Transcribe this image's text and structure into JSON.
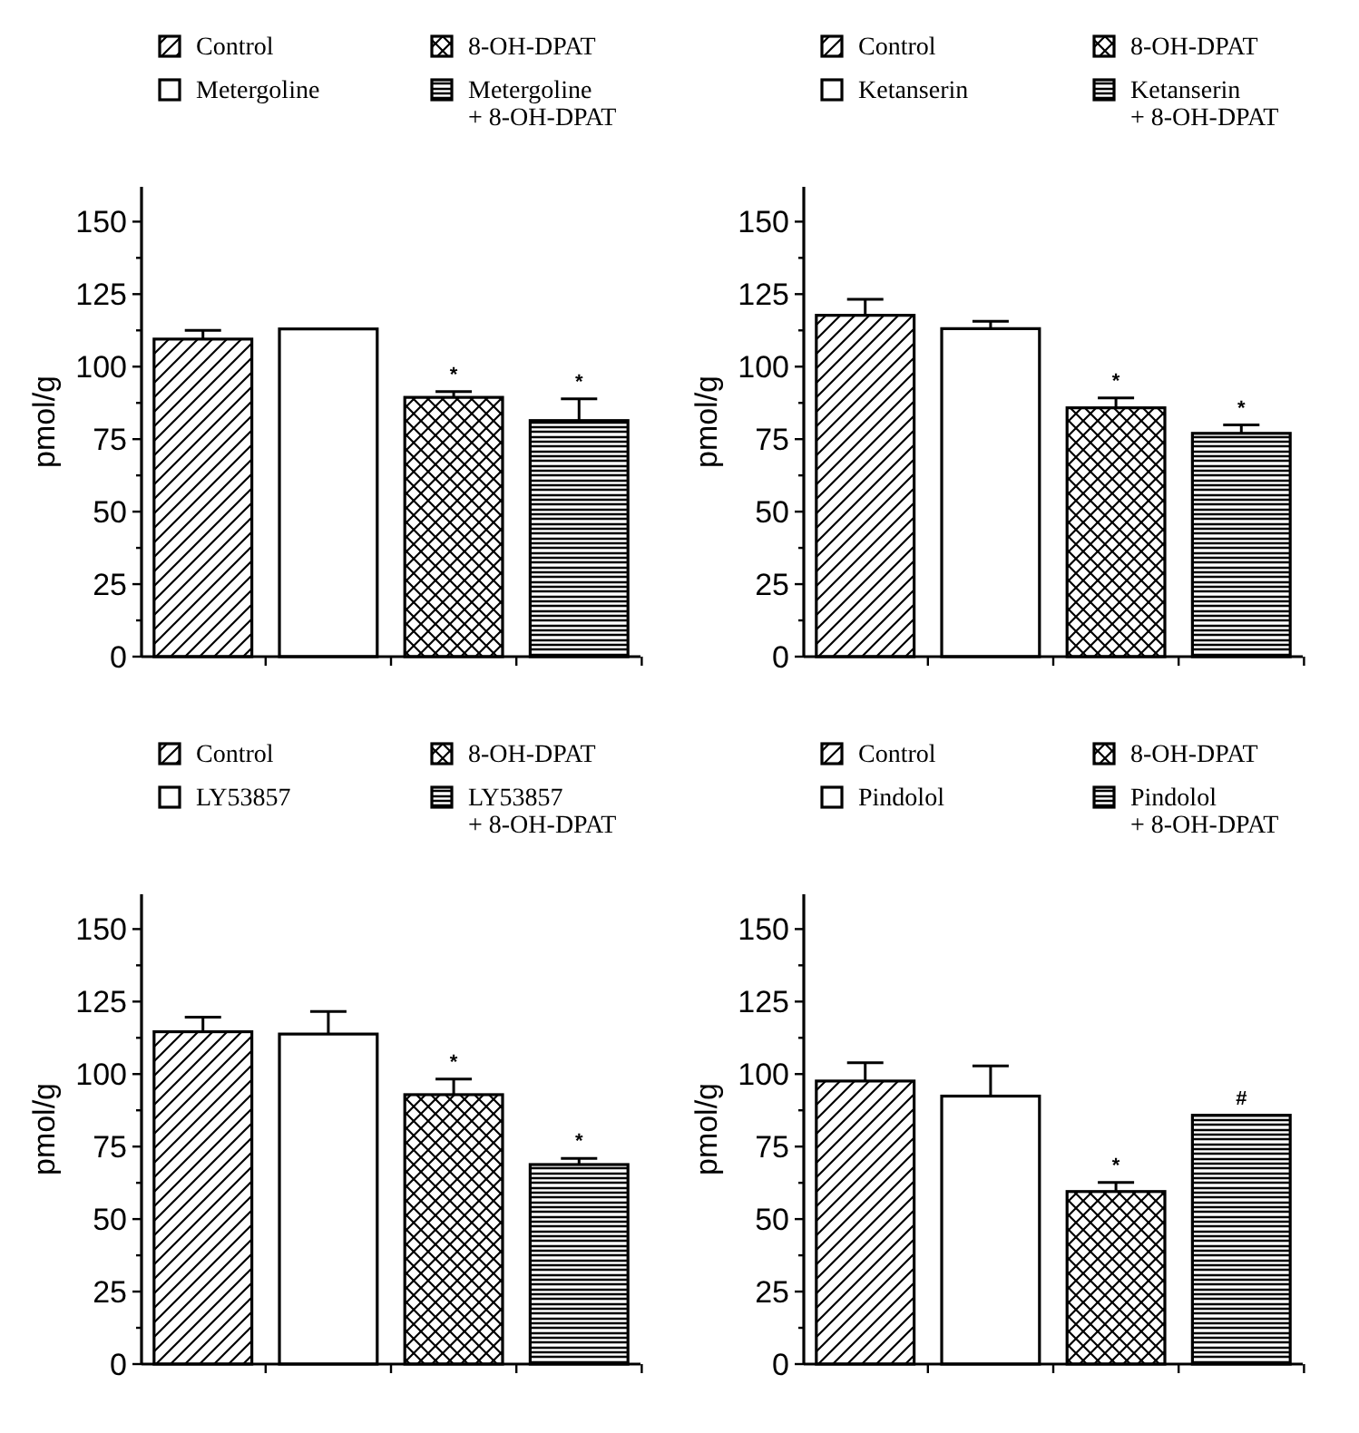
{
  "chart_data": [
    {
      "type": "bar",
      "ylabel": "pmol/g",
      "categories": [
        null,
        null,
        null,
        null
      ],
      "ylim": [
        0,
        162
      ],
      "yticks": [
        0,
        {
          "value": 12.5,
          "label": null
        },
        25,
        {
          "value": 37.5,
          "label": null
        },
        50,
        {
          "value": 62.5,
          "label": null
        },
        75,
        {
          "value": 87.5,
          "label": null
        },
        100,
        {
          "value": 112.5,
          "label": null
        },
        125,
        {
          "value": 137.5,
          "label": null
        },
        150
      ],
      "legend": "top",
      "series": [
        {
          "name": "Control",
          "color": "#000000",
          "values": [
            109.5,
            null,
            null,
            null
          ],
          "errors": [
            3,
            null,
            null,
            null
          ]
        },
        {
          "name": "Metergoline",
          "color": "#000000",
          "values": [
            null,
            113,
            null,
            null
          ]
        },
        {
          "name": "8-OH-DPAT",
          "color": "#000000",
          "values": [
            null,
            null,
            89.4,
            null
          ],
          "errors": [
            null,
            null,
            2,
            null
          ],
          "value_labels": [
            null,
            null,
            "*",
            null
          ]
        },
        {
          "name": "Metergoline\n+ 8-OH-DPAT",
          "color": "#000000",
          "values": [
            null,
            null,
            null,
            81.4
          ],
          "errors": [
            null,
            null,
            null,
            7.5
          ],
          "value_labels": [
            null,
            null,
            null,
            "*"
          ]
        }
      ]
    },
    {
      "type": "bar",
      "ylabel": "pmol/g",
      "categories": [
        null,
        null,
        null,
        null
      ],
      "ylim": [
        0,
        162
      ],
      "yticks": [
        0,
        {
          "value": 12.5,
          "label": null
        },
        25,
        {
          "value": 37.5,
          "label": null
        },
        50,
        {
          "value": 62.5,
          "label": null
        },
        75,
        {
          "value": 87.5,
          "label": null
        },
        100,
        {
          "value": 112.5,
          "label": null
        },
        125,
        {
          "value": 137.5,
          "label": null
        },
        150
      ],
      "legend": "top",
      "series": [
        {
          "name": "Control",
          "color": "#000000",
          "values": [
            117.7,
            null,
            null,
            null
          ],
          "errors": [
            5.5,
            null,
            null,
            null
          ]
        },
        {
          "name": "Ketanserin",
          "color": "#000000",
          "values": [
            null,
            113.1,
            null,
            null
          ],
          "errors": [
            null,
            2.5,
            null,
            null
          ]
        },
        {
          "name": "8-OH-DPAT",
          "color": "#000000",
          "values": [
            null,
            null,
            85.8,
            null
          ],
          "errors": [
            null,
            null,
            3.4,
            null
          ],
          "value_labels": [
            null,
            null,
            "*",
            null
          ]
        },
        {
          "name": "Ketanserin\n+ 8-OH-DPAT",
          "color": "#000000",
          "values": [
            null,
            null,
            null,
            77
          ],
          "errors": [
            null,
            null,
            null,
            2.9
          ],
          "value_labels": [
            null,
            null,
            null,
            "*"
          ]
        }
      ]
    },
    {
      "type": "bar",
      "ylabel": "pmol/g",
      "categories": [
        null,
        null,
        null,
        null
      ],
      "ylim": [
        0,
        162
      ],
      "yticks": [
        0,
        {
          "value": 12.5,
          "label": null
        },
        25,
        {
          "value": 37.5,
          "label": null
        },
        50,
        {
          "value": 62.5,
          "label": null
        },
        75,
        {
          "value": 87.5,
          "label": null
        },
        100,
        {
          "value": 112.5,
          "label": null
        },
        125,
        {
          "value": 137.5,
          "label": null
        },
        150
      ],
      "legend": "top",
      "series": [
        {
          "name": "Control",
          "color": "#000000",
          "values": [
            114.6,
            null,
            null,
            null
          ],
          "errors": [
            5,
            null,
            null,
            null
          ]
        },
        {
          "name": "LY53857",
          "color": "#000000",
          "values": [
            null,
            113.8,
            null,
            null
          ],
          "errors": [
            null,
            7.8,
            null,
            null
          ]
        },
        {
          "name": "8-OH-DPAT",
          "color": "#000000",
          "values": [
            null,
            null,
            92.9,
            null
          ],
          "errors": [
            null,
            null,
            5.4,
            null
          ],
          "value_labels": [
            null,
            null,
            "*",
            null
          ]
        },
        {
          "name": "LY53857\n+ 8-OH-DPAT",
          "color": "#000000",
          "values": [
            null,
            null,
            null,
            68.8
          ],
          "errors": [
            null,
            null,
            null,
            2.1
          ],
          "value_labels": [
            null,
            null,
            null,
            "*"
          ]
        }
      ]
    },
    {
      "type": "bar",
      "ylabel": "pmol/g",
      "categories": [
        null,
        null,
        null,
        null
      ],
      "ylim": [
        0,
        162
      ],
      "yticks": [
        0,
        {
          "value": 12.5,
          "label": null
        },
        25,
        {
          "value": 37.5,
          "label": null
        },
        50,
        {
          "value": 62.5,
          "label": null
        },
        75,
        {
          "value": 87.5,
          "label": null
        },
        100,
        {
          "value": 112.5,
          "label": null
        },
        125,
        {
          "value": 137.5,
          "label": null
        },
        150
      ],
      "legend": "top",
      "series": [
        {
          "name": "Control",
          "color": "#000000",
          "values": [
            97.6,
            null,
            null,
            null
          ],
          "errors": [
            6.3,
            null,
            null,
            null
          ]
        },
        {
          "name": "Pindolol",
          "color": "#000000",
          "values": [
            null,
            92.4,
            null,
            null
          ],
          "errors": [
            null,
            10.4,
            null,
            null
          ]
        },
        {
          "name": "8-OH-DPAT",
          "color": "#000000",
          "values": [
            null,
            null,
            59.5,
            null
          ],
          "errors": [
            null,
            null,
            3.1,
            null
          ],
          "value_labels": [
            null,
            null,
            "*",
            null
          ]
        },
        {
          "name": "Pindolol\n+ 8-OH-DPAT",
          "color": "#000000",
          "values": [
            null,
            null,
            null,
            85.8
          ],
          "value_labels": [
            null,
            null,
            null,
            "#"
          ]
        }
      ]
    }
  ]
}
